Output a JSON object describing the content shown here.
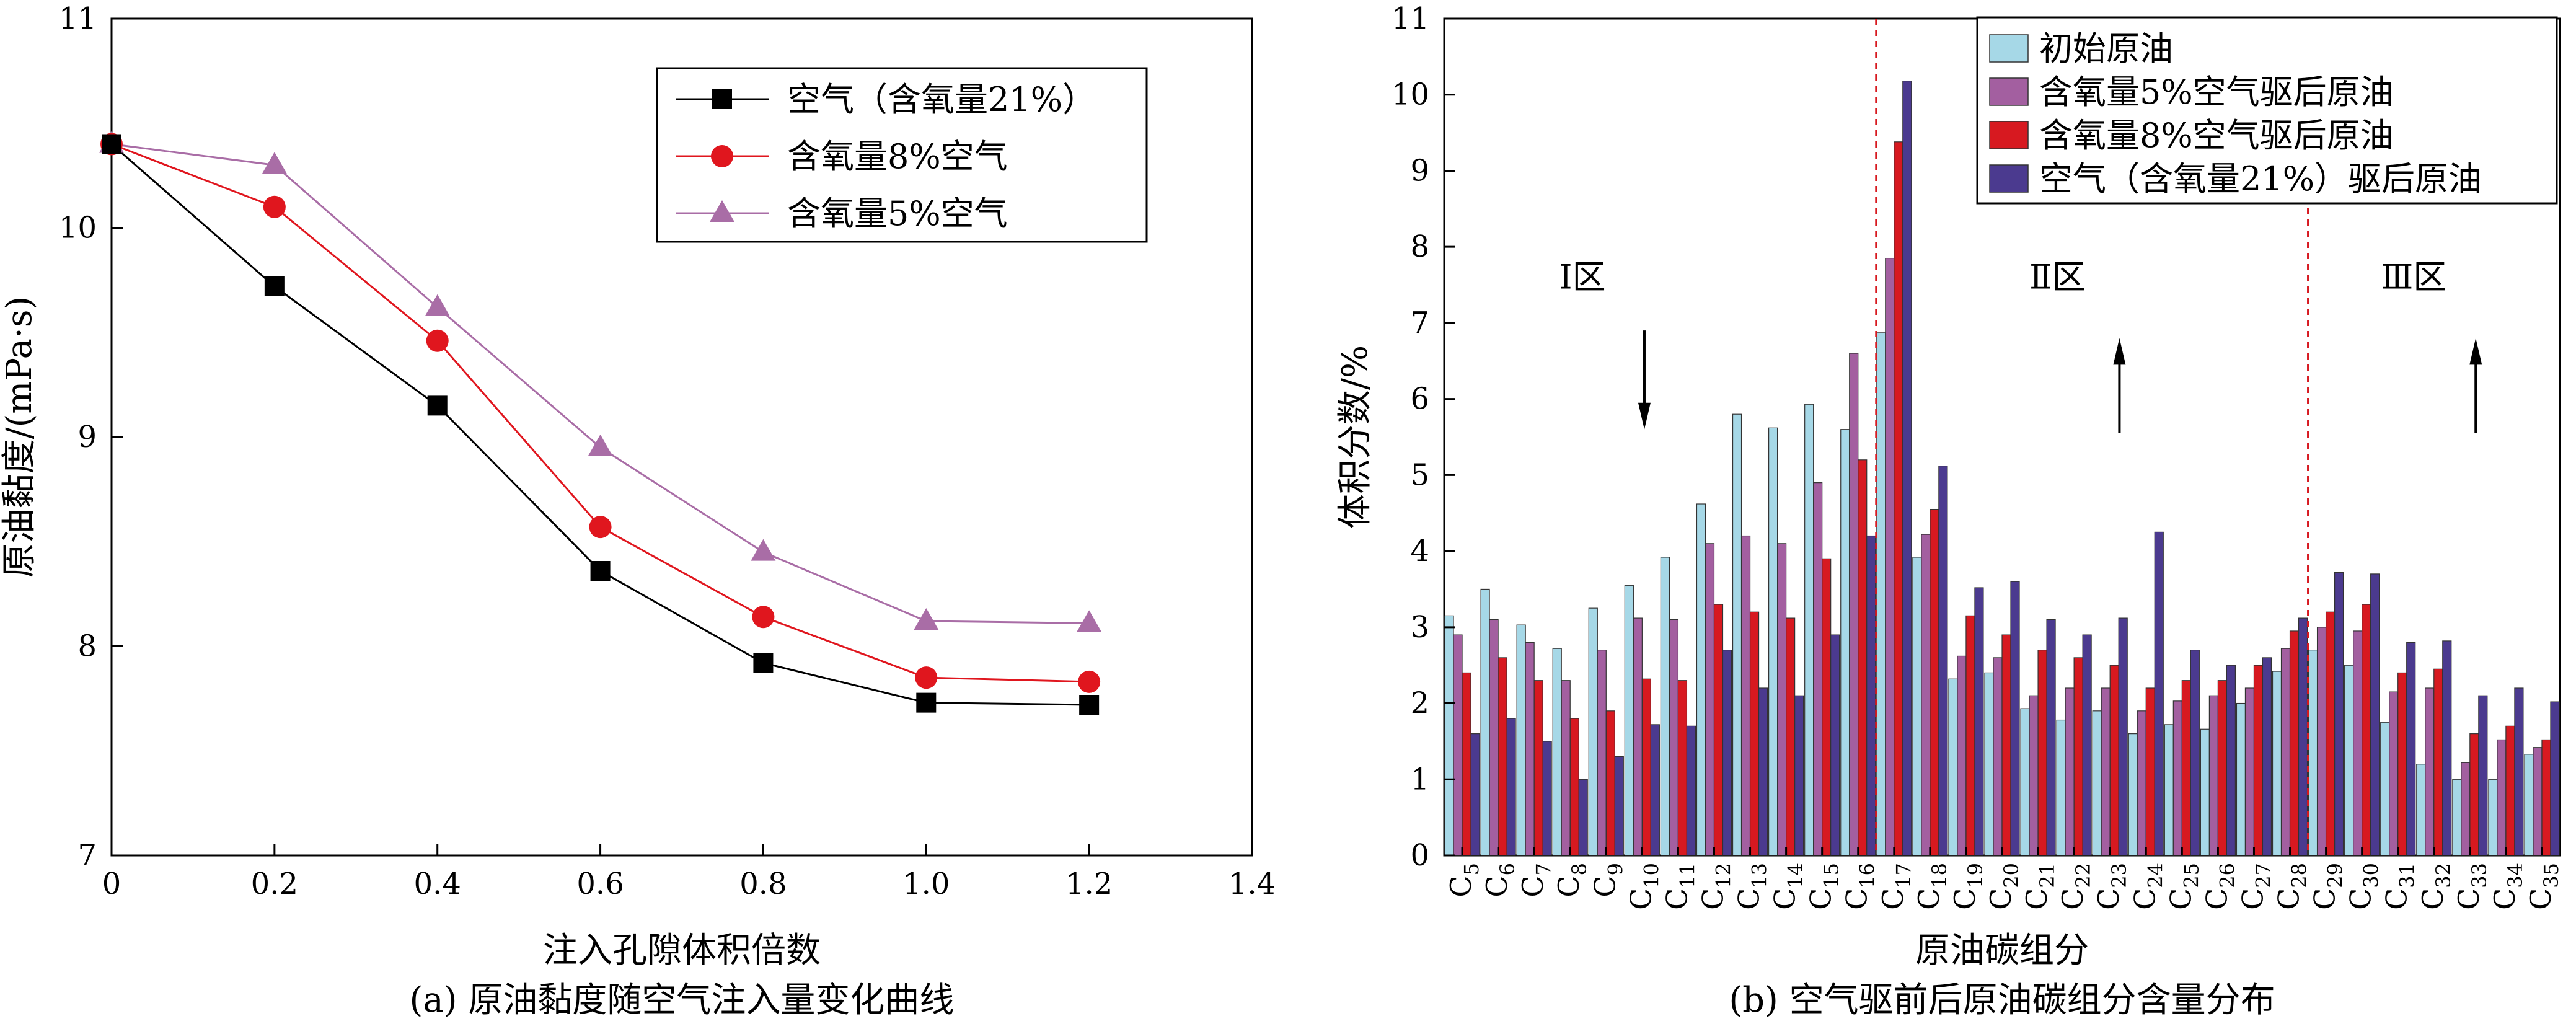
{
  "chart_data": [
    {
      "type": "line",
      "caption": "(a) 原油黏度随空气注入量变化曲线",
      "xlabel": "注入孔隙体积倍数",
      "ylabel": "原油黏度/(mPa·s)",
      "xlim": [
        0,
        1.4
      ],
      "ylim": [
        7,
        11
      ],
      "xticks": [
        "0",
        "0.2",
        "0.4",
        "0.6",
        "0.8",
        "1.0",
        "1.2",
        "1.4"
      ],
      "yticks": [
        "7",
        "8",
        "9",
        "10",
        "11"
      ],
      "grid": false,
      "legend_position": "top-right",
      "x": [
        0,
        0.2,
        0.4,
        0.6,
        0.8,
        1.0,
        1.2
      ],
      "series": [
        {
          "name": "空气（含氧量21%）",
          "color": "#000000",
          "marker": "square",
          "values": [
            10.4,
            9.72,
            9.15,
            8.36,
            7.92,
            7.73,
            7.72
          ]
        },
        {
          "name": "含氧量8%空气",
          "color": "#e0161e",
          "marker": "circle",
          "values": [
            10.4,
            10.1,
            9.46,
            8.57,
            8.14,
            7.85,
            7.83
          ]
        },
        {
          "name": "含氧量5%空气",
          "color": "#a96da6",
          "marker": "triangle",
          "values": [
            10.4,
            10.3,
            9.62,
            8.95,
            8.45,
            8.12,
            8.11
          ]
        }
      ]
    },
    {
      "type": "bar",
      "caption": "(b) 空气驱前后原油碳组分含量分布",
      "xlabel": "原油碳组分",
      "ylabel": "体积分数/%",
      "ylim": [
        0,
        11
      ],
      "yticks": [
        "0",
        "1",
        "2",
        "3",
        "4",
        "5",
        "6",
        "7",
        "8",
        "9",
        "10",
        "11"
      ],
      "grid": false,
      "legend_position": "top-right",
      "categories": [
        "5",
        "6",
        "7",
        "8",
        "9",
        "10",
        "11",
        "12",
        "13",
        "14",
        "15",
        "16",
        "17",
        "18",
        "19",
        "20",
        "21",
        "22",
        "23",
        "24",
        "25",
        "26",
        "27",
        "28",
        "29",
        "30",
        "31",
        "32",
        "33",
        "34",
        "35"
      ],
      "category_prefix": "C",
      "series": [
        {
          "name": "初始原油",
          "color": "#a6d8e7",
          "values": [
            3.15,
            3.5,
            3.03,
            2.72,
            3.25,
            3.55,
            3.92,
            4.62,
            5.8,
            5.62,
            5.93,
            5.6,
            6.87,
            3.92,
            2.32,
            2.4,
            1.93,
            1.78,
            1.9,
            1.6,
            1.72,
            1.66,
            2.0,
            2.42,
            2.7,
            2.5,
            1.75,
            1.2,
            1.0,
            1.0,
            1.33
          ]
        },
        {
          "name": "含氧量5%空气驱后原油",
          "color": "#a35fa0",
          "values": [
            2.9,
            3.1,
            2.8,
            2.3,
            2.7,
            3.12,
            3.1,
            4.1,
            4.2,
            4.1,
            4.9,
            6.6,
            7.85,
            4.22,
            2.62,
            2.6,
            2.1,
            2.2,
            2.2,
            1.9,
            2.03,
            2.1,
            2.2,
            2.72,
            3.0,
            2.95,
            2.15,
            2.2,
            1.22,
            1.52,
            1.42
          ]
        },
        {
          "name": "含氧量8%空气驱后原油",
          "color": "#d71920",
          "values": [
            2.4,
            2.6,
            2.3,
            1.8,
            1.9,
            2.32,
            2.3,
            3.3,
            3.2,
            3.12,
            3.9,
            5.2,
            9.38,
            4.55,
            3.15,
            2.9,
            2.7,
            2.6,
            2.5,
            2.2,
            2.3,
            2.3,
            2.5,
            2.95,
            3.2,
            3.3,
            2.4,
            2.45,
            1.6,
            1.7,
            1.52
          ]
        },
        {
          "name": "空气（含氧量21%）驱后原油",
          "color": "#4b3a8f",
          "values": [
            1.6,
            1.8,
            1.5,
            1.0,
            1.3,
            1.72,
            1.7,
            2.7,
            2.2,
            2.1,
            2.9,
            4.2,
            10.18,
            5.12,
            3.52,
            3.6,
            3.1,
            2.9,
            3.12,
            4.25,
            2.7,
            2.5,
            2.6,
            3.12,
            3.72,
            3.7,
            2.8,
            2.82,
            2.1,
            2.2,
            2.02
          ]
        }
      ],
      "dividers_after_category": [
        "16",
        "28"
      ],
      "annotations": [
        {
          "text": "Ⅰ区",
          "arrow": "down"
        },
        {
          "text": "Ⅱ区",
          "arrow": "up"
        },
        {
          "text": "Ⅲ区",
          "arrow": "up"
        }
      ]
    }
  ]
}
